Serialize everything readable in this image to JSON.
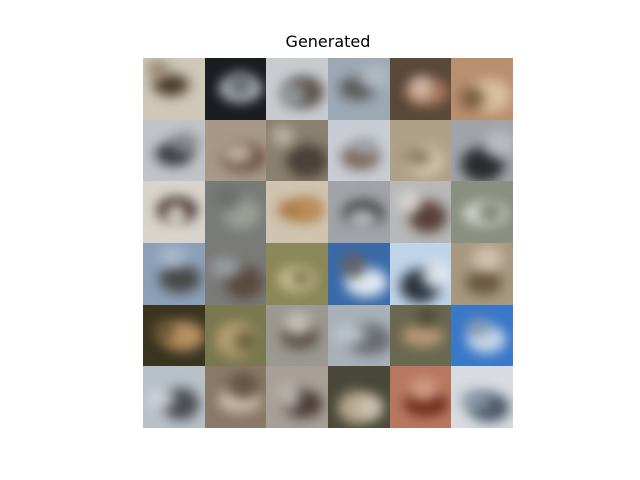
{
  "title": "Generated",
  "grid": {
    "rows": 6,
    "cols": 6,
    "tiles": [
      {
        "bg": "#cfc8b8",
        "fg": "#4a3a28",
        "accent": "#8a7a60"
      },
      {
        "bg": "#1a1e22",
        "fg": "#b8bcc0",
        "accent": "#5a6068"
      },
      {
        "bg": "#c8ccd0",
        "fg": "#5a5048",
        "accent": "#9aa0a4"
      },
      {
        "bg": "#9ca8b4",
        "fg": "#5a5858",
        "accent": "#b8c0c8"
      },
      {
        "bg": "#5a4838",
        "fg": "#a87860",
        "accent": "#d8c8b8"
      },
      {
        "bg": "#b89070",
        "fg": "#d8c0a0",
        "accent": "#6a4830"
      },
      {
        "bg": "#c0c4c8",
        "fg": "#3a3c40",
        "accent": "#808488"
      },
      {
        "bg": "#a89888",
        "fg": "#6a5040",
        "accent": "#d0c4b4"
      },
      {
        "bg": "#8a8070",
        "fg": "#4a4038",
        "accent": "#c8c0b0"
      },
      {
        "bg": "#c8ccd4",
        "fg": "#7a6858",
        "accent": "#a0a4ac"
      },
      {
        "bg": "#b0a088",
        "fg": "#d8c8b0",
        "accent": "#7a6850"
      },
      {
        "bg": "#a0a4a8",
        "fg": "#2a2c30",
        "accent": "#c0c4c8"
      },
      {
        "bg": "#d8d4cc",
        "fg": "#3a2820",
        "accent": "#f0ece4"
      },
      {
        "bg": "#787c78",
        "fg": "#9aa098",
        "accent": "#686c68"
      },
      {
        "bg": "#d0c4b0",
        "fg": "#a87840",
        "accent": "#c09060"
      },
      {
        "bg": "#a0a4a8",
        "fg": "#3a3838",
        "accent": "#c8ccd0"
      },
      {
        "bg": "#b8b8b8",
        "fg": "#5a4038",
        "accent": "#e0dcd8"
      },
      {
        "bg": "#8a9080",
        "fg": "#d8dcd8",
        "accent": "#6a7060"
      },
      {
        "bg": "#8ca0b8",
        "fg": "#4a4848",
        "accent": "#b0c0d0"
      },
      {
        "bg": "#7a7a78",
        "fg": "#5a4a40",
        "accent": "#a0a8b0"
      },
      {
        "bg": "#8a8858",
        "fg": "#d8c8a0",
        "accent": "#6a6840"
      },
      {
        "bg": "#3a6aa8",
        "fg": "#e0e8f0",
        "accent": "#6a6058"
      },
      {
        "bg": "#c0d4e8",
        "fg": "#2a3440",
        "accent": "#f0f4f8"
      },
      {
        "bg": "#a89880",
        "fg": "#6a5840",
        "accent": "#d8ccb8"
      },
      {
        "bg": "#3a3420",
        "fg": "#b89060",
        "accent": "#6a5838"
      },
      {
        "bg": "#7a7850",
        "fg": "#b8a070",
        "accent": "#5a5838"
      },
      {
        "bg": "#9a9890",
        "fg": "#5a5048",
        "accent": "#d8d4cc"
      },
      {
        "bg": "#a8b0b8",
        "fg": "#6a6c70",
        "accent": "#c8d0d8"
      },
      {
        "bg": "#6a6850",
        "fg": "#b89878",
        "accent": "#4a4830"
      },
      {
        "bg": "#3a78c8",
        "fg": "#c8d8e8",
        "accent": "#8a98a8"
      },
      {
        "bg": "#b8c0c8",
        "fg": "#4a4c50",
        "accent": "#d8dce0"
      },
      {
        "bg": "#8a7868",
        "fg": "#d0c0b0",
        "accent": "#5a4838"
      },
      {
        "bg": "#a8a098",
        "fg": "#4a3c38",
        "accent": "#c8c4c0"
      },
      {
        "bg": "#4a4838",
        "fg": "#b8a890",
        "accent": "#d8d0c0"
      },
      {
        "bg": "#b87860",
        "fg": "#6a2818",
        "accent": "#d8a890"
      },
      {
        "bg": "#d8dce0",
        "fg": "#4a5868",
        "accent": "#8a98a8"
      }
    ]
  }
}
